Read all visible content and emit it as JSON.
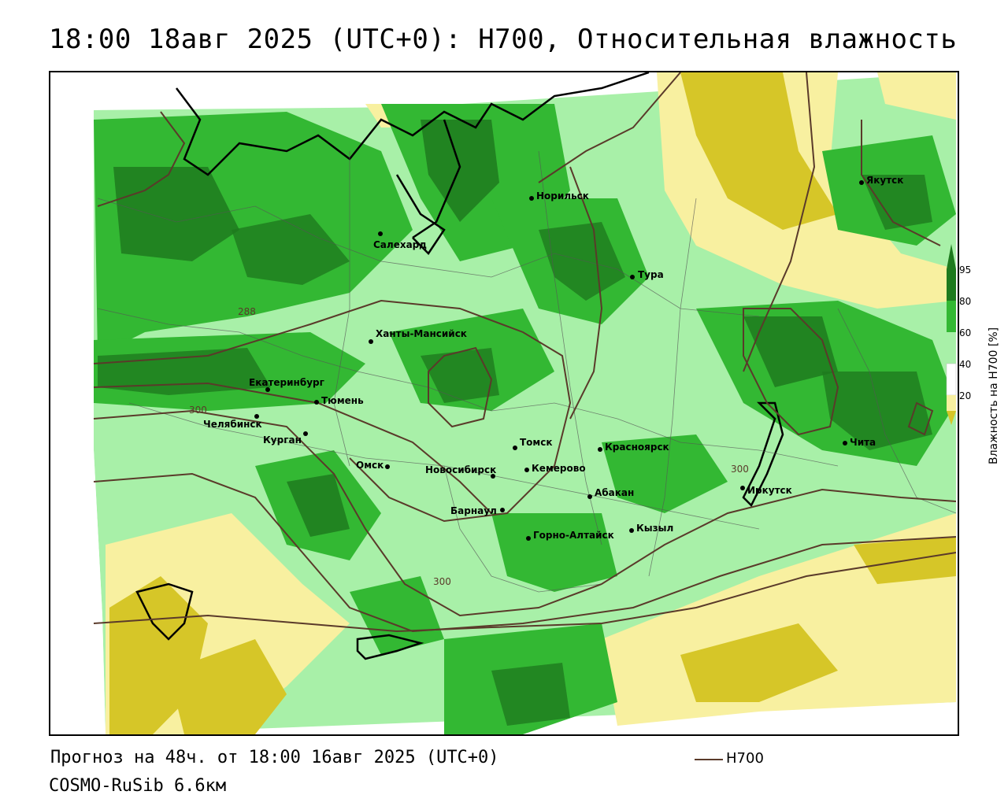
{
  "title": "18:00 18авг 2025 (UTC+0): H700, Относительная влажность",
  "footer": {
    "forecast": "Прогноз на 48ч. от 18:00 16авг 2025 (UTC+0)",
    "model": "COSMO-RuSib 6.6км",
    "legend_series": "H700"
  },
  "colorbar": {
    "title": "Влажность на H700 [%]",
    "ticks": [
      "95",
      "80",
      "60",
      "40",
      "20"
    ],
    "colors": {
      "c95": "#1e7a1e",
      "c80": "#33b833",
      "c60": "#a8f0a8",
      "c40": "#ffffff",
      "c20": "#f8f0a0",
      "c0": "#d6c628"
    }
  },
  "contour_labels": [
    "288",
    "300",
    "300",
    "300"
  ],
  "cities": [
    {
      "name": "Якутск"
    },
    {
      "name": "Норильск"
    },
    {
      "name": "Салехард"
    },
    {
      "name": "Тура"
    },
    {
      "name": "Ханты-Мансийск"
    },
    {
      "name": "Екатеринбург"
    },
    {
      "name": "Тюмень"
    },
    {
      "name": "Челябинск"
    },
    {
      "name": "Курган"
    },
    {
      "name": "Омск"
    },
    {
      "name": "Новосибирск"
    },
    {
      "name": "Томск"
    },
    {
      "name": "Кемерово"
    },
    {
      "name": "Красноярск"
    },
    {
      "name": "Абакан"
    },
    {
      "name": "Барнаул"
    },
    {
      "name": "Горно-Алтайск"
    },
    {
      "name": "Кызыл"
    },
    {
      "name": "Иркутск"
    },
    {
      "name": "Чита"
    }
  ]
}
